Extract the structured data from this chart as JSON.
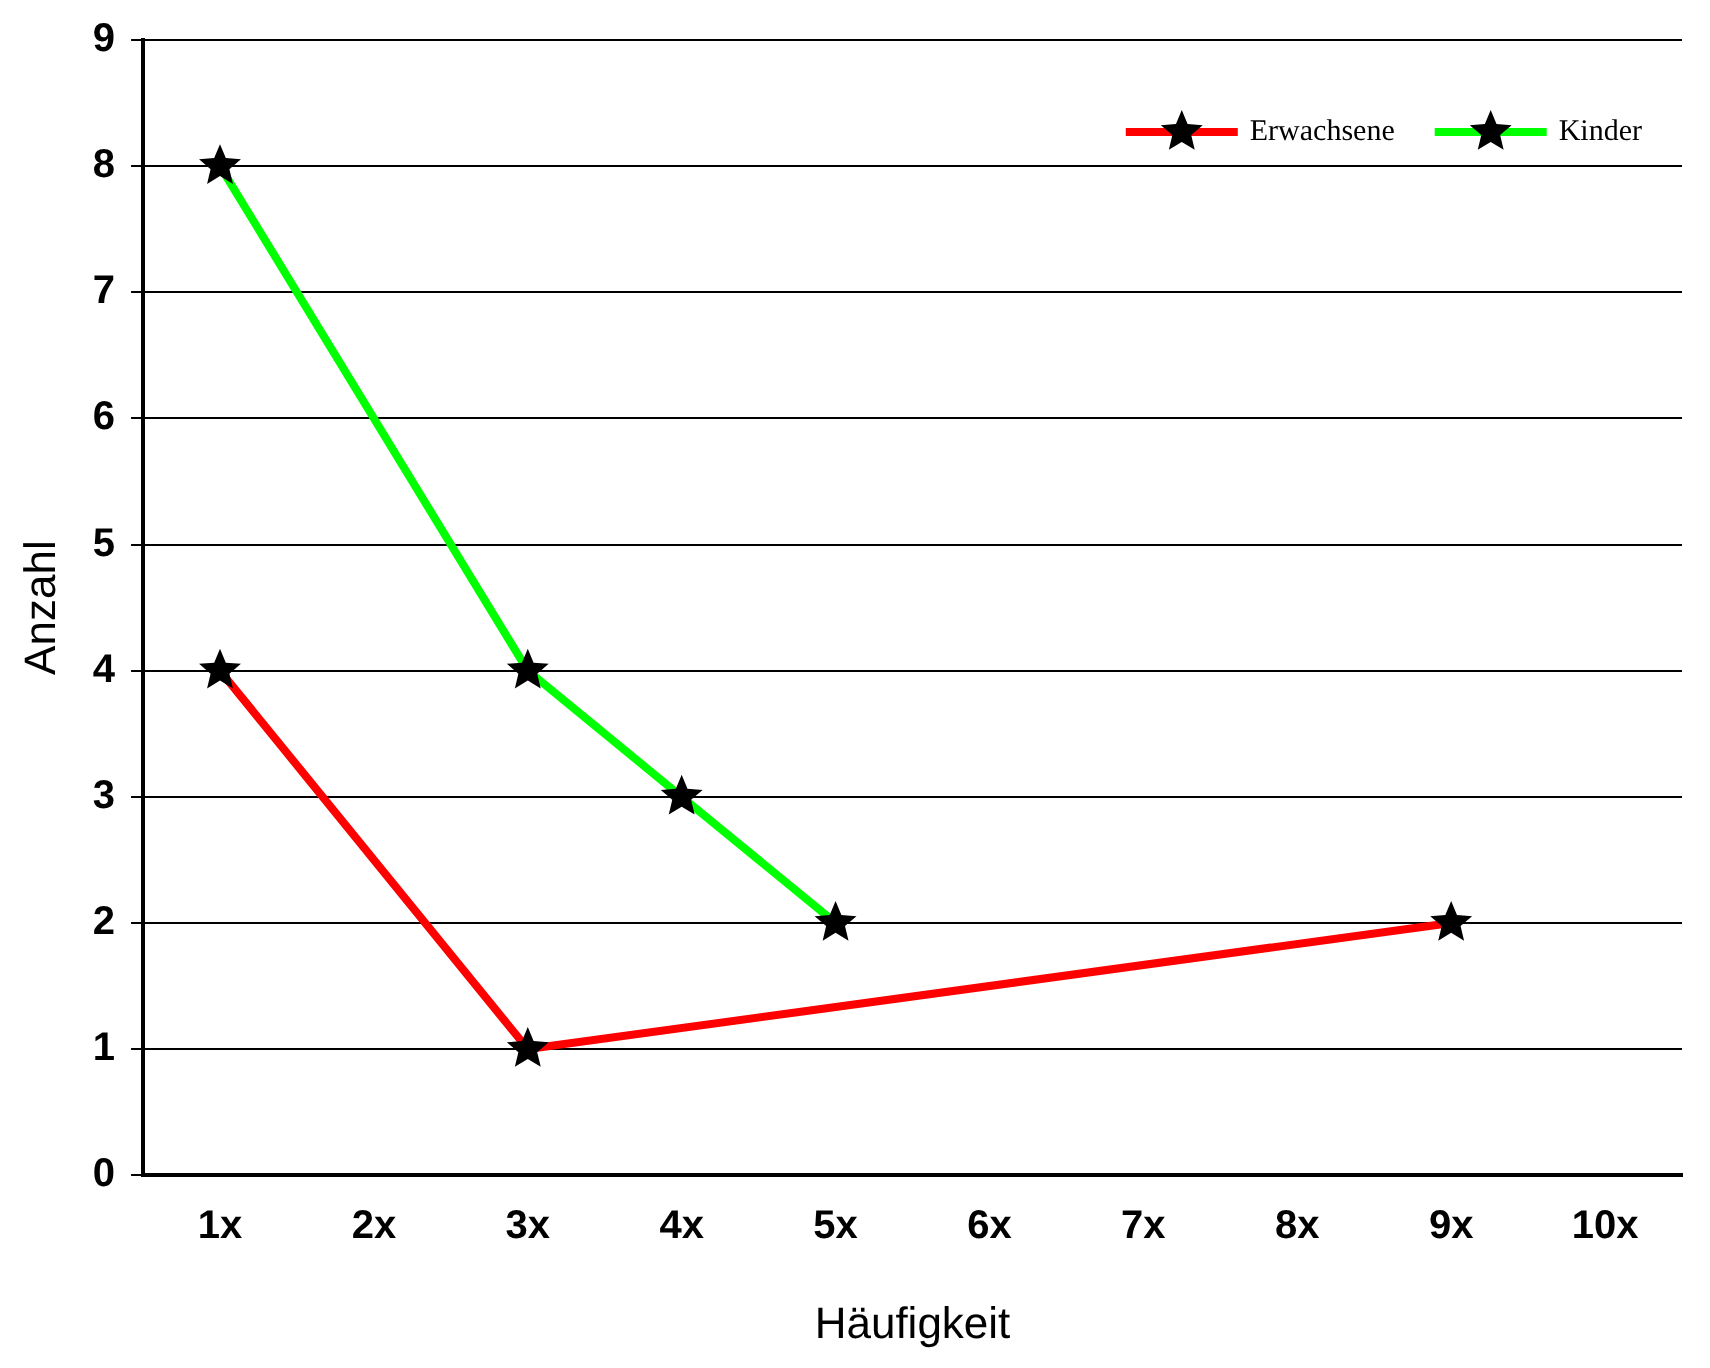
{
  "chart_data": {
    "type": "line",
    "xlabel": "Häufigkeit",
    "ylabel": "Anzahl",
    "categories": [
      "1x",
      "2x",
      "3x",
      "4x",
      "5x",
      "6x",
      "7x",
      "8x",
      "9x",
      "10x"
    ],
    "series": [
      {
        "name": "Erwachsene",
        "color": "#ff0000",
        "values": [
          4,
          null,
          1,
          null,
          null,
          null,
          null,
          null,
          2,
          null
        ]
      },
      {
        "name": "Kinder",
        "color": "#00ff00",
        "values": [
          8,
          null,
          4,
          3,
          2,
          null,
          null,
          null,
          null,
          null
        ]
      }
    ],
    "ylim": [
      0,
      9
    ],
    "yticks": [
      0,
      1,
      2,
      3,
      4,
      5,
      6,
      7,
      8,
      9
    ],
    "grid": "y",
    "legend": "top right",
    "marker": "star",
    "line_style": "solid"
  }
}
